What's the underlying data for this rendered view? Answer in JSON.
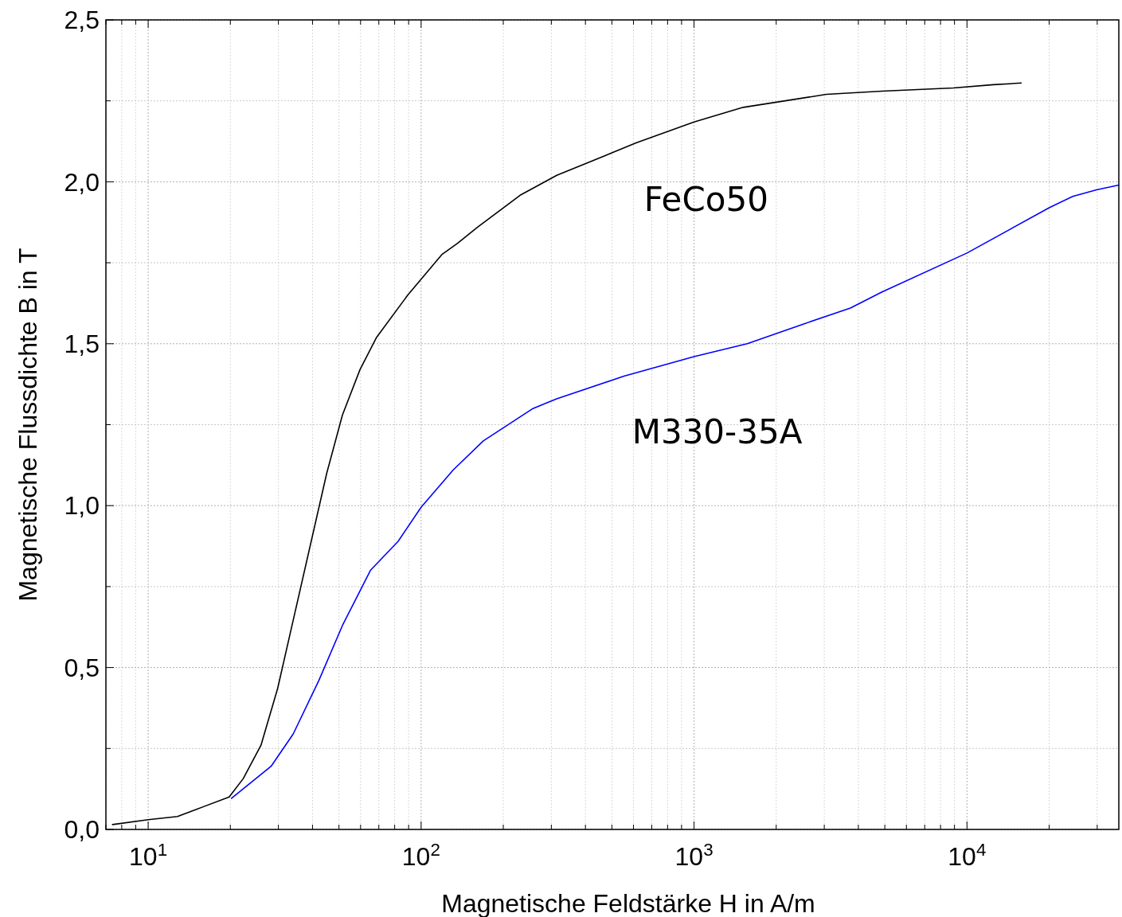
{
  "chart_data": {
    "type": "line",
    "xlabel": "Magnetische Feldstärke H in A/m",
    "ylabel": "Magnetische Flussdichte B in T",
    "log": "x",
    "grid": true,
    "marker": "none",
    "line_style": "solid",
    "xlim": [
      7,
      36000
    ],
    "ylim": [
      0,
      2.5
    ],
    "xticks": [
      {
        "value": 7,
        "label": null
      },
      {
        "value": 8,
        "label": null
      },
      {
        "value": 9,
        "label": null
      },
      {
        "value": 10,
        "label": "10$^{1}$"
      },
      {
        "value": 20,
        "label": null
      },
      {
        "value": 30,
        "label": null
      },
      {
        "value": 40,
        "label": null
      },
      {
        "value": 50,
        "label": null
      },
      {
        "value": 60,
        "label": null
      },
      {
        "value": 70,
        "label": null
      },
      {
        "value": 80,
        "label": null
      },
      {
        "value": 90,
        "label": null
      },
      {
        "value": 100,
        "label": "10$^{2}$"
      },
      {
        "value": 200,
        "label": null
      },
      {
        "value": 300,
        "label": null
      },
      {
        "value": 400,
        "label": null
      },
      {
        "value": 500,
        "label": null
      },
      {
        "value": 600,
        "label": null
      },
      {
        "value": 700,
        "label": null
      },
      {
        "value": 800,
        "label": null
      },
      {
        "value": 900,
        "label": null
      },
      {
        "value": 1000,
        "label": "10$^{3}$"
      },
      {
        "value": 2000,
        "label": null
      },
      {
        "value": 3000,
        "label": null
      },
      {
        "value": 4000,
        "label": null
      },
      {
        "value": 5000,
        "label": null
      },
      {
        "value": 6000,
        "label": null
      },
      {
        "value": 7000,
        "label": null
      },
      {
        "value": 8000,
        "label": null
      },
      {
        "value": 9000,
        "label": null
      },
      {
        "value": 10000,
        "label": "10$^{4}$"
      },
      {
        "value": 20000,
        "label": null
      },
      {
        "value": 30000,
        "label": null
      }
    ],
    "yticks": [
      {
        "value": 0,
        "label": "0,0"
      },
      {
        "value": 0.25,
        "label": null
      },
      {
        "value": 0.5,
        "label": "0,5"
      },
      {
        "value": 0.75,
        "label": null
      },
      {
        "value": 1,
        "label": "1,0"
      },
      {
        "value": 1.25,
        "label": null
      },
      {
        "value": 1.5,
        "label": "1,5"
      },
      {
        "value": 1.75,
        "label": null
      },
      {
        "value": 2,
        "label": "2,0"
      },
      {
        "value": 2.25,
        "label": null
      },
      {
        "value": 2.5,
        "label": "2,5"
      }
    ],
    "series": [
      {
        "name": "FeCo50",
        "color": "#000000",
        "x": [
          7.4,
          10,
          12.8,
          19.8,
          22.3,
          25.9,
          29.8,
          34.5,
          45.1,
          51.5,
          59.7,
          68.7,
          89.3,
          119,
          136,
          161,
          232,
          314,
          613,
          1000,
          1514,
          3055,
          4885,
          8920,
          12500,
          15800
        ],
        "values": [
          0.015,
          0.03,
          0.04,
          0.1,
          0.157,
          0.26,
          0.435,
          0.67,
          1.1,
          1.28,
          1.42,
          1.52,
          1.65,
          1.775,
          1.81,
          1.86,
          1.96,
          2.02,
          2.12,
          2.185,
          2.23,
          2.27,
          2.28,
          2.29,
          2.3,
          2.305
        ]
      },
      {
        "name": "M330-35A",
        "color": "#0000ff",
        "x": [
          20.2,
          28.2,
          34,
          42.2,
          51.5,
          65.2,
          82.4,
          100,
          131,
          169,
          257,
          314,
          554,
          1000,
          1567,
          2500,
          3740,
          4885,
          10000,
          20000,
          24400,
          29800,
          36000
        ],
        "values": [
          0.096,
          0.195,
          0.295,
          0.46,
          0.63,
          0.8,
          0.89,
          0.995,
          1.11,
          1.2,
          1.3,
          1.33,
          1.4,
          1.46,
          1.5,
          1.56,
          1.61,
          1.66,
          1.78,
          1.92,
          1.955,
          1.975,
          1.99
        ]
      }
    ]
  }
}
